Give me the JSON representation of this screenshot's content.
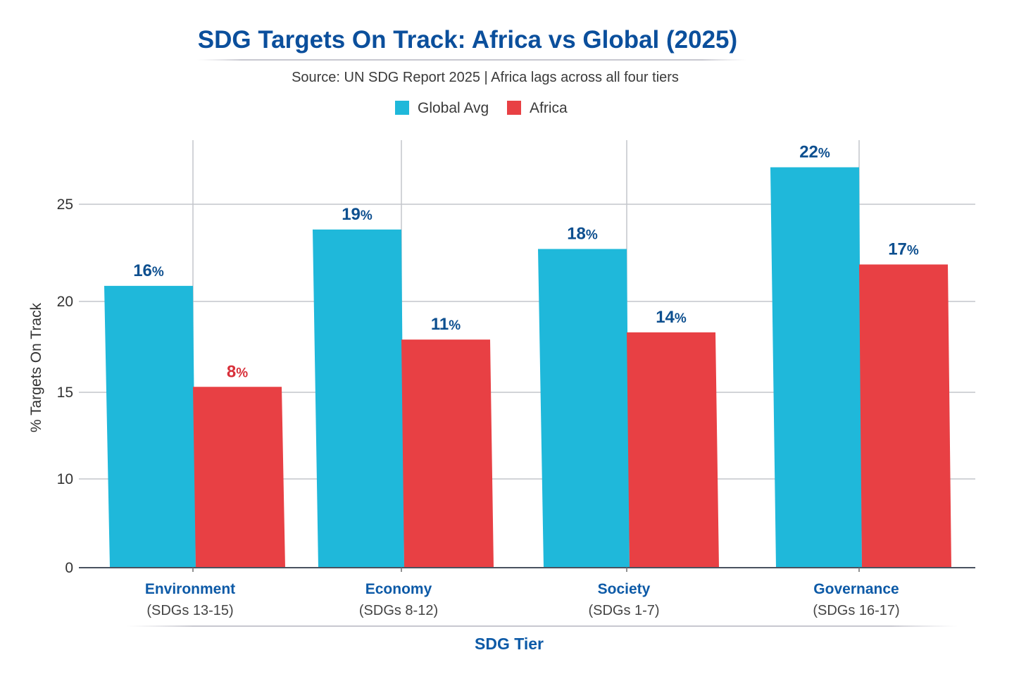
{
  "chart_data": {
    "type": "bar",
    "title": "SDG Targets On Track: Africa vs Global (2025)",
    "subtitle": "Source: UN SDG Report 2025 | Africa lags across all four tiers",
    "xlabel": "SDG Tier",
    "ylabel": "% Targets On Track",
    "y_ticks": [
      0,
      10,
      15,
      20,
      25
    ],
    "ylim": [
      0,
      28
    ],
    "grid": true,
    "legend_position": "top-center",
    "categories": [
      "Environment",
      "Economy",
      "Society",
      "Governance"
    ],
    "category_sublabels": [
      "(SDGs 13-15)",
      "(SDGs 8-12)",
      "(SDGs 1-7)",
      "(SDGs 16-17)"
    ],
    "series": [
      {
        "name": "Global Avg",
        "color": "#1fb8da",
        "label_color": "#0d4f8f",
        "values": [
          16,
          19,
          18,
          22
        ],
        "labels": [
          "16%",
          "19%",
          "18%",
          "22%"
        ],
        "axis_position_values": [
          20.8,
          23.7,
          22.7,
          26.9
        ]
      },
      {
        "name": "Africa",
        "color": "#e84044",
        "label_colors": [
          "#d8303a",
          "#0d4f8f",
          "#0d4f8f",
          "#0d4f8f"
        ],
        "values": [
          8,
          11,
          14,
          17
        ],
        "labels": [
          "8%",
          "11%",
          "14%",
          "17%"
        ],
        "axis_position_values": [
          15.3,
          17.9,
          18.3,
          21.9
        ]
      }
    ]
  }
}
